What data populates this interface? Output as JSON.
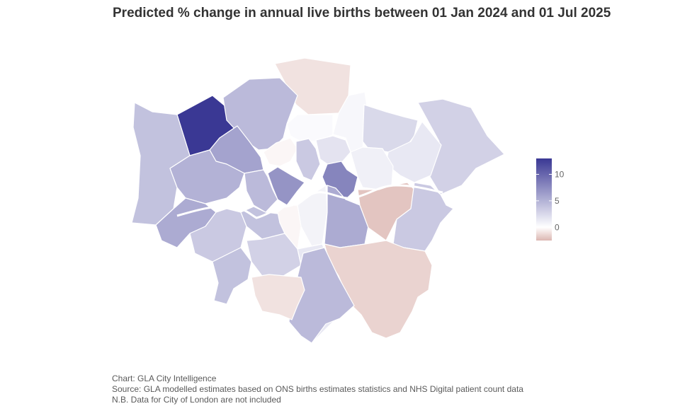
{
  "title": "Predicted % change in annual live births between 01 Jan 2024 and 01 Jul 2025",
  "legend": {
    "ticks": [
      {
        "label": "10",
        "value": 10
      },
      {
        "label": "5",
        "value": 5
      },
      {
        "label": "0",
        "value": 0
      }
    ],
    "min": -2.5,
    "max": 13,
    "colors": {
      "low": "#dcb6b1",
      "mid": "#ffffff",
      "high": "#3a3894"
    }
  },
  "caption": {
    "line1": "Chart: GLA City Intelligence",
    "line2": "Source: GLA modelled estimates based on ONS births estimates statistics and NHS Digital patient count data",
    "line3": "N.B. Data for City of London are not included"
  },
  "map": {
    "border_color": "#ffffff",
    "boroughs": [
      {
        "value": -1.0
      },
      {
        "value": 0.5
      },
      {
        "value": 2.5
      },
      {
        "value": 3.0
      },
      {
        "value": 1.5
      },
      {
        "value": 13.0
      },
      {
        "value": 4.5
      },
      {
        "value": 4.0
      },
      {
        "value": 6.0
      },
      {
        "value": 5.0
      },
      {
        "value": 0.3
      },
      {
        "value": -0.3
      },
      {
        "value": 3.5
      },
      {
        "value": 1.8
      },
      {
        "value": 8.0
      },
      {
        "value": 1.0
      },
      {
        "value": 7.0
      },
      {
        "value": 4.5
      },
      {
        "value": 5.5
      },
      {
        "value": 3.5
      },
      {
        "value": 4.0
      },
      {
        "value": 4.0
      },
      {
        "value": -0.3
      },
      {
        "value": 0.8
      },
      {
        "value": 3.0
      },
      {
        "value": 5.5
      },
      {
        "value": -2.0
      },
      {
        "value": 3.5
      },
      {
        "value": 1.5
      },
      {
        "value": -1.5
      },
      {
        "value": 4.5
      },
      {
        "value": -1.0
      }
    ]
  }
}
